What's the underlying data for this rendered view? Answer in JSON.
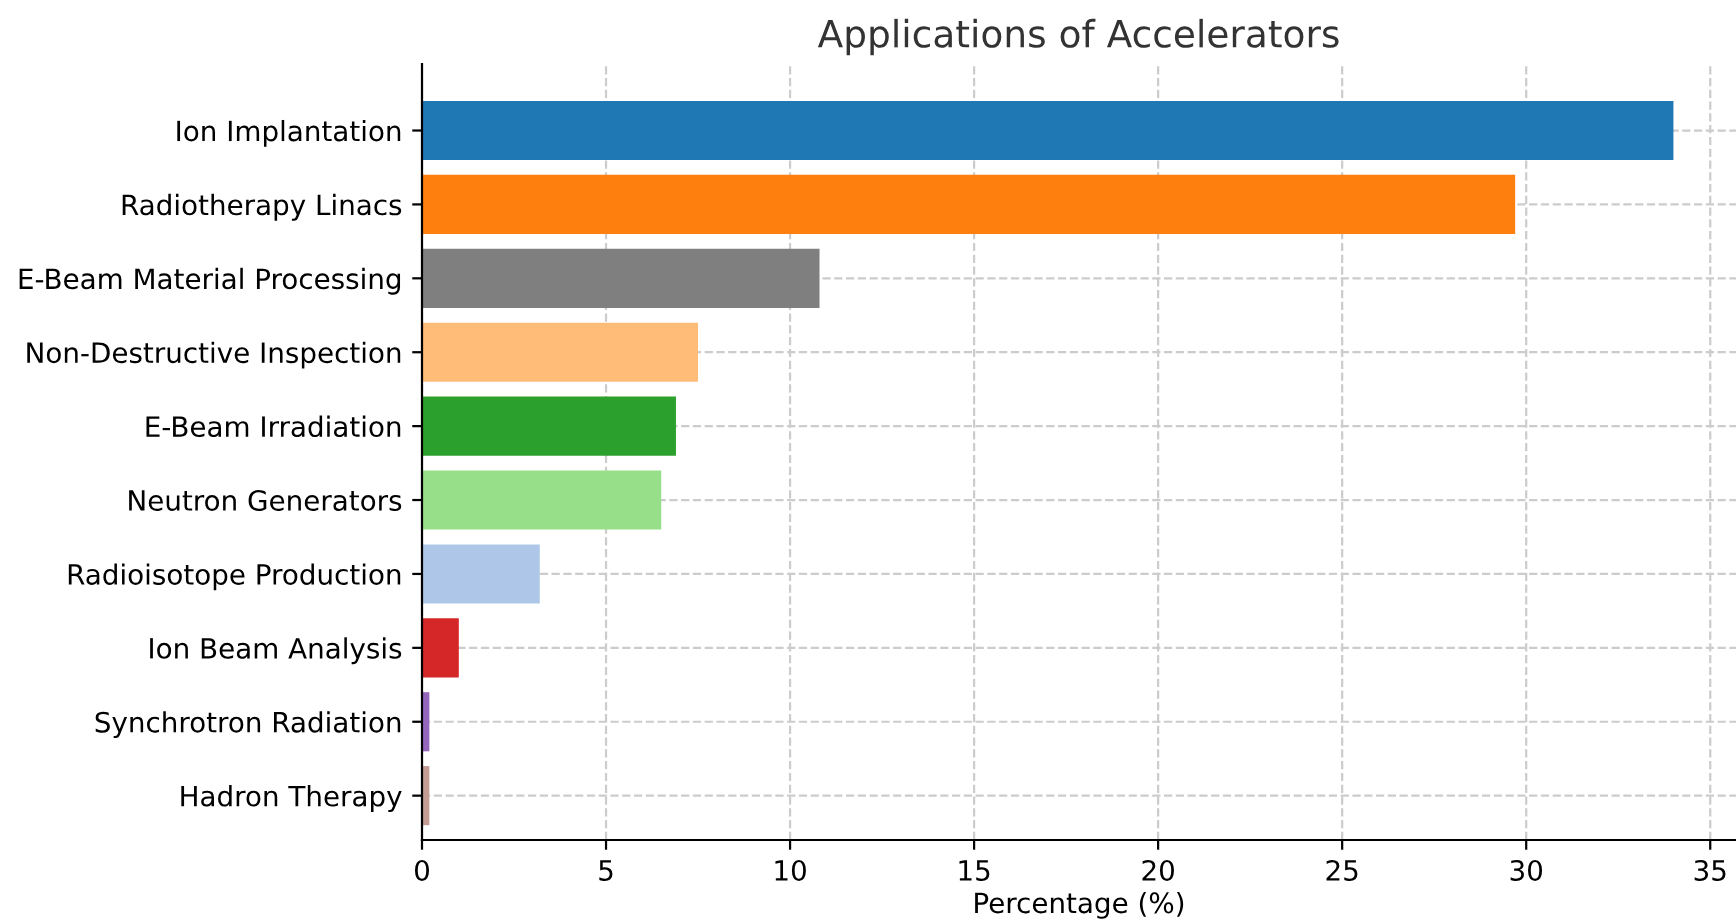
{
  "chart_data": {
    "type": "bar",
    "orientation": "horizontal",
    "title": "Applications of Accelerators",
    "xlabel": "Percentage (%)",
    "categories": [
      "Ion Implantation",
      "Radiotherapy Linacs",
      "E-Beam Material Processing",
      "Non-Destructive Inspection",
      "E-Beam Irradiation",
      "Neutron Generators",
      "Radioisotope Production",
      "Ion Beam Analysis",
      "Synchrotron Radiation",
      "Hadron Therapy"
    ],
    "values": [
      34.0,
      29.7,
      10.8,
      7.5,
      6.9,
      6.5,
      3.2,
      1.0,
      0.2,
      0.2
    ],
    "colors": [
      "#1f77b4",
      "#ff7f0e",
      "#7f7f7f",
      "#ffbb78",
      "#2ca02c",
      "#98df8a",
      "#aec7e8",
      "#d62728",
      "#9467bd",
      "#c49c94"
    ],
    "xlim": [
      0,
      35.7
    ],
    "xticks": [
      0,
      5,
      10,
      15,
      20,
      25,
      30,
      35
    ],
    "grid": true
  }
}
